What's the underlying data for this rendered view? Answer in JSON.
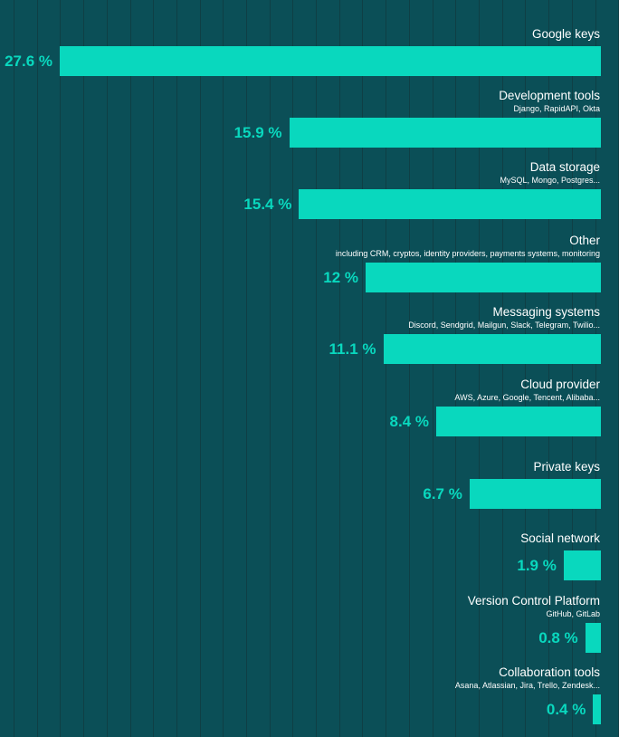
{
  "colors": {
    "background": "#0b4f57",
    "bar": "#09d8be",
    "label": "#ffffff",
    "gridline": "#0f3f45"
  },
  "chart_data": {
    "type": "bar",
    "orientation": "horizontal",
    "title": "",
    "xlabel": "",
    "ylabel": "",
    "unit": "%",
    "grid": true,
    "legend": "none",
    "xlim": [
      0,
      28.7
    ],
    "categories": [
      "Google keys",
      "Development tools",
      "Data storage",
      "Other",
      "Messaging systems",
      "Cloud provider",
      "Private keys",
      "Social network",
      "Version Control Platform",
      "Collaboration tools"
    ],
    "subtitles": [
      "",
      "Django, RapidAPI, Okta",
      "MySQL, Mongo, Postgres...",
      "including CRM, cryptos, identity providers, payments systems, monitoring",
      "Discord, Sendgrid, Mailgun, Slack, Telegram, Twilio...",
      "AWS, Azure, Google, Tencent, Alibaba...",
      "",
      "",
      "GitHub, GitLab",
      "Asana, Atlassian, Jira, Trello, Zendesk..."
    ],
    "values": [
      27.6,
      15.9,
      15.4,
      12,
      11.1,
      8.4,
      6.7,
      1.9,
      0.8,
      0.4
    ],
    "value_labels": [
      "27.6 %",
      "15.9 %",
      "15.4 %",
      "12 %",
      "11.1 %",
      "8.4 %",
      "6.7 %",
      "1.9 %",
      "0.8 %",
      "0.4 %"
    ]
  }
}
